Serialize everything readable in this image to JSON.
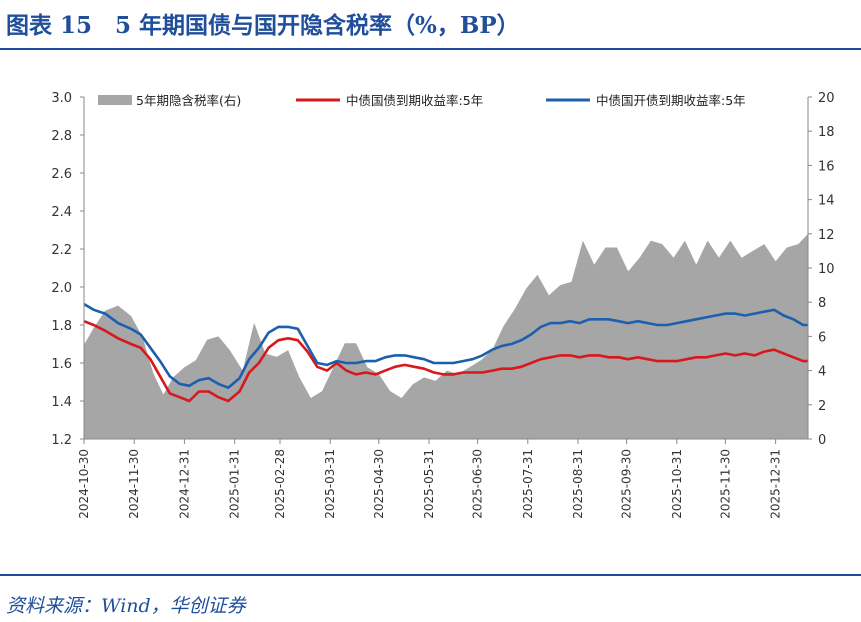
{
  "figure": {
    "title": "图表 15　5 年期国债与国开隐含税率（%，BP）",
    "source": "资料来源：Wind，华创证券"
  },
  "colors": {
    "accent": "#1f4e9a",
    "area": "#a6a6a6",
    "red": "#d7191c",
    "blue": "#1c5fae"
  },
  "chart_data": {
    "type": "line",
    "title": "",
    "xlabel": "",
    "ylabel": "",
    "x_type": "date",
    "x_range": [
      "2024-10-30",
      "2026-01-20"
    ],
    "ylim": [
      1.2,
      3.0
    ],
    "y_ticks": [
      "3.0",
      "2.8",
      "2.6",
      "2.4",
      "2.2",
      "2.0",
      "1.8",
      "1.6",
      "1.4",
      "1.2"
    ],
    "y2lim": [
      0,
      20
    ],
    "y2_ticks": [
      "20",
      "18",
      "16",
      "14",
      "12",
      "10",
      "8",
      "6",
      "4",
      "2",
      "0"
    ],
    "x_ticks": [
      "2024-10-30",
      "2024-11-30",
      "2024-12-31",
      "2025-01-31",
      "2025-02-28",
      "2025-03-31",
      "2025-04-30",
      "2025-05-31",
      "2025-06-30",
      "2025-07-31",
      "2025-08-31",
      "2025-09-30",
      "2025-10-31",
      "2025-11-30",
      "2025-12-31"
    ],
    "grid": false,
    "legend_position": "top",
    "series": [
      {
        "name": "5年期隐含税率(右)",
        "axis": "right",
        "kind": "area",
        "x": [
          "2024-10-30",
          "2024-11-05",
          "2024-11-12",
          "2024-11-20",
          "2024-11-28",
          "2024-12-05",
          "2024-12-12",
          "2024-12-18",
          "2024-12-24",
          "2024-12-31",
          "2025-01-07",
          "2025-01-14",
          "2025-01-21",
          "2025-01-28",
          "2025-02-05",
          "2025-02-12",
          "2025-02-19",
          "2025-02-26",
          "2025-03-05",
          "2025-03-12",
          "2025-03-19",
          "2025-03-26",
          "2025-04-02",
          "2025-04-09",
          "2025-04-16",
          "2025-04-23",
          "2025-04-30",
          "2025-05-07",
          "2025-05-14",
          "2025-05-21",
          "2025-05-28",
          "2025-06-04",
          "2025-06-11",
          "2025-06-18",
          "2025-06-25",
          "2025-07-02",
          "2025-07-09",
          "2025-07-16",
          "2025-07-23",
          "2025-07-30",
          "2025-08-06",
          "2025-08-13",
          "2025-08-20",
          "2025-08-27",
          "2025-09-03",
          "2025-09-10",
          "2025-09-17",
          "2025-09-24",
          "2025-10-01",
          "2025-10-08",
          "2025-10-15",
          "2025-10-22",
          "2025-10-29",
          "2025-11-05",
          "2025-11-12",
          "2025-11-19",
          "2025-11-26",
          "2025-12-03",
          "2025-12-10",
          "2025-12-17",
          "2025-12-24",
          "2025-12-31",
          "2026-01-07",
          "2026-01-14",
          "2026-01-20"
        ],
        "values": [
          5.5,
          6.5,
          7.5,
          7.8,
          7.2,
          6.0,
          3.8,
          2.6,
          3.6,
          4.2,
          4.6,
          5.8,
          6.0,
          5.2,
          4.0,
          6.8,
          5.0,
          4.8,
          5.2,
          3.6,
          2.4,
          2.8,
          4.2,
          5.6,
          5.6,
          4.2,
          3.8,
          2.8,
          2.4,
          3.2,
          3.6,
          3.4,
          4.0,
          3.8,
          4.2,
          4.6,
          5.2,
          6.6,
          7.6,
          8.8,
          9.6,
          8.4,
          9.0,
          9.2,
          11.6,
          10.2,
          11.2,
          11.2,
          9.8,
          10.6,
          11.6,
          11.4,
          10.6,
          11.6,
          10.2,
          11.6,
          10.6,
          11.6,
          10.6,
          11.0,
          11.4,
          10.4,
          11.2,
          11.4,
          12.0
        ]
      },
      {
        "name": "中债国债到期收益率:5年",
        "axis": "left",
        "kind": "line",
        "x": [
          "2024-10-30",
          "2024-11-05",
          "2024-11-12",
          "2024-11-20",
          "2024-11-28",
          "2024-12-04",
          "2024-12-10",
          "2024-12-16",
          "2024-12-22",
          "2024-12-28",
          "2025-01-03",
          "2025-01-09",
          "2025-01-15",
          "2025-01-21",
          "2025-01-27",
          "2025-02-03",
          "2025-02-09",
          "2025-02-15",
          "2025-02-21",
          "2025-02-27",
          "2025-03-05",
          "2025-03-11",
          "2025-03-17",
          "2025-03-23",
          "2025-03-29",
          "2025-04-04",
          "2025-04-10",
          "2025-04-16",
          "2025-04-22",
          "2025-04-28",
          "2025-05-04",
          "2025-05-10",
          "2025-05-16",
          "2025-05-22",
          "2025-05-28",
          "2025-06-03",
          "2025-06-09",
          "2025-06-15",
          "2025-06-21",
          "2025-06-27",
          "2025-07-03",
          "2025-07-09",
          "2025-07-15",
          "2025-07-21",
          "2025-07-27",
          "2025-08-02",
          "2025-08-08",
          "2025-08-14",
          "2025-08-20",
          "2025-08-26",
          "2025-09-01",
          "2025-09-07",
          "2025-09-13",
          "2025-09-19",
          "2025-09-25",
          "2025-10-01",
          "2025-10-07",
          "2025-10-13",
          "2025-10-19",
          "2025-10-25",
          "2025-10-31",
          "2025-11-06",
          "2025-11-12",
          "2025-11-18",
          "2025-11-24",
          "2025-11-30",
          "2025-12-06",
          "2025-12-12",
          "2025-12-18",
          "2025-12-24",
          "2025-12-30",
          "2026-01-05",
          "2026-01-11",
          "2026-01-17",
          "2026-01-20"
        ],
        "values": [
          1.82,
          1.8,
          1.77,
          1.73,
          1.7,
          1.68,
          1.62,
          1.53,
          1.44,
          1.42,
          1.4,
          1.45,
          1.45,
          1.42,
          1.4,
          1.45,
          1.55,
          1.6,
          1.68,
          1.72,
          1.73,
          1.72,
          1.66,
          1.58,
          1.56,
          1.6,
          1.56,
          1.54,
          1.55,
          1.54,
          1.56,
          1.58,
          1.59,
          1.58,
          1.57,
          1.55,
          1.54,
          1.54,
          1.55,
          1.55,
          1.55,
          1.56,
          1.57,
          1.57,
          1.58,
          1.6,
          1.62,
          1.63,
          1.64,
          1.64,
          1.63,
          1.64,
          1.64,
          1.63,
          1.63,
          1.62,
          1.63,
          1.62,
          1.61,
          1.61,
          1.61,
          1.62,
          1.63,
          1.63,
          1.64,
          1.65,
          1.64,
          1.65,
          1.64,
          1.66,
          1.67,
          1.65,
          1.63,
          1.61,
          1.61
        ]
      },
      {
        "name": "中债国开债到期收益率:5年",
        "axis": "left",
        "kind": "line",
        "x": [
          "2024-10-30",
          "2024-11-05",
          "2024-11-12",
          "2024-11-20",
          "2024-11-28",
          "2024-12-04",
          "2024-12-10",
          "2024-12-16",
          "2024-12-22",
          "2024-12-28",
          "2025-01-03",
          "2025-01-09",
          "2025-01-15",
          "2025-01-21",
          "2025-01-27",
          "2025-02-03",
          "2025-02-09",
          "2025-02-15",
          "2025-02-21",
          "2025-02-27",
          "2025-03-05",
          "2025-03-11",
          "2025-03-17",
          "2025-03-23",
          "2025-03-29",
          "2025-04-04",
          "2025-04-10",
          "2025-04-16",
          "2025-04-22",
          "2025-04-28",
          "2025-05-04",
          "2025-05-10",
          "2025-05-16",
          "2025-05-22",
          "2025-05-28",
          "2025-06-03",
          "2025-06-09",
          "2025-06-15",
          "2025-06-21",
          "2025-06-27",
          "2025-07-03",
          "2025-07-09",
          "2025-07-15",
          "2025-07-21",
          "2025-07-27",
          "2025-08-02",
          "2025-08-08",
          "2025-08-14",
          "2025-08-20",
          "2025-08-26",
          "2025-09-01",
          "2025-09-07",
          "2025-09-13",
          "2025-09-19",
          "2025-09-25",
          "2025-10-01",
          "2025-10-07",
          "2025-10-13",
          "2025-10-19",
          "2025-10-25",
          "2025-10-31",
          "2025-11-06",
          "2025-11-12",
          "2025-11-18",
          "2025-11-24",
          "2025-11-30",
          "2025-12-06",
          "2025-12-12",
          "2025-12-18",
          "2025-12-24",
          "2025-12-30",
          "2026-01-05",
          "2026-01-11",
          "2026-01-17",
          "2026-01-20"
        ],
        "values": [
          1.91,
          1.88,
          1.86,
          1.81,
          1.78,
          1.75,
          1.68,
          1.61,
          1.53,
          1.49,
          1.48,
          1.51,
          1.52,
          1.49,
          1.47,
          1.52,
          1.62,
          1.68,
          1.76,
          1.79,
          1.79,
          1.78,
          1.69,
          1.6,
          1.59,
          1.61,
          1.6,
          1.6,
          1.61,
          1.61,
          1.63,
          1.64,
          1.64,
          1.63,
          1.62,
          1.6,
          1.6,
          1.6,
          1.61,
          1.62,
          1.64,
          1.67,
          1.69,
          1.7,
          1.72,
          1.75,
          1.79,
          1.81,
          1.81,
          1.82,
          1.81,
          1.83,
          1.83,
          1.83,
          1.82,
          1.81,
          1.82,
          1.81,
          1.8,
          1.8,
          1.81,
          1.82,
          1.83,
          1.84,
          1.85,
          1.86,
          1.86,
          1.85,
          1.86,
          1.87,
          1.88,
          1.85,
          1.83,
          1.8,
          1.8
        ]
      }
    ]
  }
}
